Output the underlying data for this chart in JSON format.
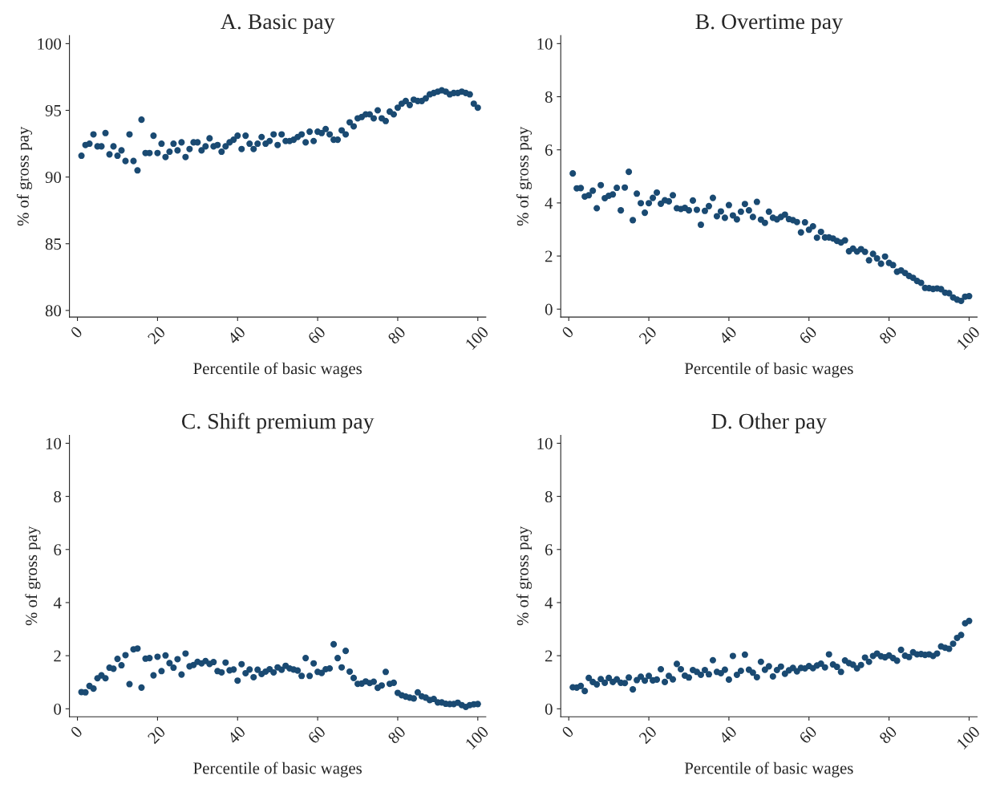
{
  "chart_data": [
    {
      "type": "scatter",
      "title": "A. Basic pay",
      "xlabel": "Percentile of basic wages",
      "ylabel": "% of gross pay",
      "marker": "circle",
      "grid": false,
      "xlim": [
        -2,
        102
      ],
      "xticks": [
        0,
        20,
        40,
        60,
        80,
        100
      ],
      "ylim": [
        79.5,
        100.6
      ],
      "yticks": [
        80,
        85,
        90,
        95,
        100
      ],
      "x": [
        1,
        2,
        3,
        4,
        5,
        6,
        7,
        8,
        9,
        10,
        11,
        12,
        13,
        14,
        15,
        16,
        17,
        18,
        19,
        20,
        21,
        22,
        23,
        24,
        25,
        26,
        27,
        28,
        29,
        30,
        31,
        32,
        33,
        34,
        35,
        36,
        37,
        38,
        39,
        40,
        41,
        42,
        43,
        44,
        45,
        46,
        47,
        48,
        49,
        50,
        51,
        52,
        53,
        54,
        55,
        56,
        57,
        58,
        59,
        60,
        61,
        62,
        63,
        64,
        65,
        66,
        67,
        68,
        69,
        70,
        71,
        72,
        73,
        74,
        75,
        76,
        77,
        78,
        79,
        80,
        81,
        82,
        83,
        84,
        85,
        86,
        87,
        88,
        89,
        90,
        91,
        92,
        93,
        94,
        95,
        96,
        97,
        98,
        99,
        100
      ],
      "series": [
        {
          "color": "#1a4a72",
          "values": [
            91.6,
            92.4,
            92.5,
            93.2,
            92.3,
            92.3,
            93.3,
            91.7,
            92.3,
            91.6,
            92.0,
            91.2,
            93.2,
            91.2,
            90.5,
            94.3,
            91.8,
            91.8,
            93.1,
            91.8,
            92.5,
            91.5,
            91.9,
            92.5,
            92.0,
            92.6,
            91.5,
            92.1,
            92.6,
            92.6,
            92.0,
            92.3,
            92.9,
            92.3,
            92.4,
            91.9,
            92.3,
            92.6,
            92.8,
            93.1,
            92.1,
            93.1,
            92.5,
            92.1,
            92.5,
            93.0,
            92.5,
            92.7,
            93.2,
            92.4,
            93.2,
            92.7,
            92.7,
            92.8,
            93.0,
            93.2,
            92.6,
            93.4,
            92.7,
            93.4,
            93.3,
            93.6,
            93.2,
            92.8,
            92.8,
            93.5,
            93.2,
            94.1,
            93.8,
            94.4,
            94.5,
            94.7,
            94.7,
            94.4,
            95.0,
            94.4,
            94.2,
            94.9,
            94.7,
            95.2,
            95.5,
            95.7,
            95.4,
            95.8,
            95.7,
            95.7,
            95.9,
            96.2,
            96.3,
            96.4,
            96.5,
            96.4,
            96.2,
            96.3,
            96.3,
            96.4,
            96.3,
            96.2,
            95.5,
            95.2
          ]
        }
      ]
    },
    {
      "type": "scatter",
      "title": "B. Overtime pay",
      "xlabel": "Percentile of basic wages",
      "ylabel": "% of gross pay",
      "marker": "circle",
      "grid": false,
      "xlim": [
        -2,
        102
      ],
      "xticks": [
        0,
        20,
        40,
        60,
        80,
        100
      ],
      "ylim": [
        -0.3,
        10.3
      ],
      "yticks": [
        0,
        2,
        4,
        6,
        8,
        10
      ],
      "x": [
        1,
        2,
        3,
        4,
        5,
        6,
        7,
        8,
        9,
        10,
        11,
        12,
        13,
        14,
        15,
        16,
        17,
        18,
        19,
        20,
        21,
        22,
        23,
        24,
        25,
        26,
        27,
        28,
        29,
        30,
        31,
        32,
        33,
        34,
        35,
        36,
        37,
        38,
        39,
        40,
        41,
        42,
        43,
        44,
        45,
        46,
        47,
        48,
        49,
        50,
        51,
        52,
        53,
        54,
        55,
        56,
        57,
        58,
        59,
        60,
        61,
        62,
        63,
        64,
        65,
        66,
        67,
        68,
        69,
        70,
        71,
        72,
        73,
        74,
        75,
        76,
        77,
        78,
        79,
        80,
        81,
        82,
        83,
        84,
        85,
        86,
        87,
        88,
        89,
        90,
        91,
        92,
        93,
        94,
        95,
        96,
        97,
        98,
        99,
        100
      ],
      "series": [
        {
          "color": "#1a4a72",
          "values": [
            5.11,
            4.55,
            4.56,
            4.24,
            4.29,
            4.46,
            3.8,
            4.67,
            4.18,
            4.27,
            4.32,
            4.57,
            3.72,
            4.58,
            5.17,
            3.35,
            4.35,
            3.99,
            3.63,
            3.99,
            4.19,
            4.39,
            3.97,
            4.1,
            4.06,
            4.29,
            3.8,
            3.77,
            3.81,
            3.72,
            4.09,
            3.74,
            3.18,
            3.7,
            3.88,
            4.19,
            3.5,
            3.68,
            3.44,
            3.92,
            3.53,
            3.38,
            3.67,
            3.96,
            3.72,
            3.47,
            4.04,
            3.37,
            3.25,
            3.67,
            3.44,
            3.38,
            3.47,
            3.56,
            3.39,
            3.35,
            3.28,
            2.89,
            3.27,
            2.99,
            3.12,
            2.69,
            2.91,
            2.7,
            2.7,
            2.66,
            2.57,
            2.51,
            2.59,
            2.18,
            2.28,
            2.17,
            2.26,
            2.16,
            1.84,
            2.08,
            1.91,
            1.71,
            1.98,
            1.74,
            1.66,
            1.41,
            1.46,
            1.36,
            1.25,
            1.18,
            1.06,
            0.99,
            0.8,
            0.79,
            0.76,
            0.78,
            0.75,
            0.62,
            0.6,
            0.44,
            0.36,
            0.31,
            0.47,
            0.49
          ]
        }
      ]
    },
    {
      "type": "scatter",
      "title": "C. Shift premium pay",
      "xlabel": "Percentile of basic wages",
      "ylabel": "% of gross pay",
      "marker": "circle",
      "grid": false,
      "xlim": [
        -2,
        102
      ],
      "xticks": [
        0,
        20,
        40,
        60,
        80,
        100
      ],
      "ylim": [
        -0.3,
        10.3
      ],
      "yticks": [
        0,
        2,
        4,
        6,
        8,
        10
      ],
      "x": [
        1,
        2,
        3,
        4,
        5,
        6,
        7,
        8,
        9,
        10,
        11,
        12,
        13,
        14,
        15,
        16,
        17,
        18,
        19,
        20,
        21,
        22,
        23,
        24,
        25,
        26,
        27,
        28,
        29,
        30,
        31,
        32,
        33,
        34,
        35,
        36,
        37,
        38,
        39,
        40,
        41,
        42,
        43,
        44,
        45,
        46,
        47,
        48,
        49,
        50,
        51,
        52,
        53,
        54,
        55,
        56,
        57,
        58,
        59,
        60,
        61,
        62,
        63,
        64,
        65,
        66,
        67,
        68,
        69,
        70,
        71,
        72,
        73,
        74,
        75,
        76,
        77,
        78,
        79,
        80,
        81,
        82,
        83,
        84,
        85,
        86,
        87,
        88,
        89,
        90,
        91,
        92,
        93,
        94,
        95,
        96,
        97,
        98,
        99,
        100
      ],
      "series": [
        {
          "color": "#1a4a72",
          "values": [
            0.63,
            0.62,
            0.86,
            0.76,
            1.15,
            1.26,
            1.15,
            1.55,
            1.51,
            1.88,
            1.64,
            2.02,
            0.93,
            2.24,
            2.27,
            0.8,
            1.89,
            1.91,
            1.26,
            1.96,
            1.42,
            2.01,
            1.72,
            1.55,
            1.87,
            1.29,
            2.08,
            1.6,
            1.65,
            1.77,
            1.71,
            1.8,
            1.69,
            1.76,
            1.42,
            1.37,
            1.74,
            1.45,
            1.48,
            1.06,
            1.68,
            1.34,
            1.48,
            1.19,
            1.47,
            1.31,
            1.4,
            1.49,
            1.37,
            1.56,
            1.47,
            1.62,
            1.52,
            1.48,
            1.44,
            1.24,
            1.91,
            1.24,
            1.71,
            1.39,
            1.35,
            1.49,
            1.52,
            2.43,
            1.91,
            1.56,
            2.18,
            1.4,
            1.16,
            0.94,
            0.95,
            1.03,
            0.97,
            1.02,
            0.79,
            0.88,
            1.39,
            0.94,
            0.98,
            0.6,
            0.51,
            0.46,
            0.42,
            0.39,
            0.62,
            0.47,
            0.42,
            0.33,
            0.37,
            0.24,
            0.24,
            0.19,
            0.18,
            0.18,
            0.23,
            0.14,
            0.07,
            0.14,
            0.17,
            0.18
          ]
        }
      ]
    },
    {
      "type": "scatter",
      "title": "D. Other pay",
      "xlabel": "Percentile of basic wages",
      "ylabel": "% of gross pay",
      "marker": "circle",
      "grid": false,
      "xlim": [
        -2,
        102
      ],
      "xticks": [
        0,
        20,
        40,
        60,
        80,
        100
      ],
      "ylim": [
        -0.3,
        10.3
      ],
      "yticks": [
        0,
        2,
        4,
        6,
        8,
        10
      ],
      "x": [
        1,
        2,
        3,
        4,
        5,
        6,
        7,
        8,
        9,
        10,
        11,
        12,
        13,
        14,
        15,
        16,
        17,
        18,
        19,
        20,
        21,
        22,
        23,
        24,
        25,
        26,
        27,
        28,
        29,
        30,
        31,
        32,
        33,
        34,
        35,
        36,
        37,
        38,
        39,
        40,
        41,
        42,
        43,
        44,
        45,
        46,
        47,
        48,
        49,
        50,
        51,
        52,
        53,
        54,
        55,
        56,
        57,
        58,
        59,
        60,
        61,
        62,
        63,
        64,
        65,
        66,
        67,
        68,
        69,
        70,
        71,
        72,
        73,
        74,
        75,
        76,
        77,
        78,
        79,
        80,
        81,
        82,
        83,
        84,
        85,
        86,
        87,
        88,
        89,
        90,
        91,
        92,
        93,
        94,
        95,
        96,
        97,
        98,
        99,
        100
      ],
      "series": [
        {
          "color": "#1a4a72",
          "values": [
            0.81,
            0.8,
            0.86,
            0.67,
            1.16,
            1.01,
            0.92,
            1.12,
            0.98,
            1.16,
            1.01,
            1.11,
            0.98,
            0.97,
            1.18,
            0.73,
            1.08,
            1.21,
            1.06,
            1.24,
            1.07,
            1.1,
            1.49,
            1.01,
            1.24,
            1.11,
            1.69,
            1.49,
            1.25,
            1.18,
            1.46,
            1.39,
            1.28,
            1.46,
            1.3,
            1.83,
            1.39,
            1.34,
            1.47,
            1.1,
            1.99,
            1.28,
            1.43,
            2.04,
            1.47,
            1.36,
            1.19,
            1.77,
            1.47,
            1.6,
            1.22,
            1.46,
            1.59,
            1.32,
            1.45,
            1.54,
            1.41,
            1.54,
            1.52,
            1.61,
            1.53,
            1.63,
            1.7,
            1.56,
            2.05,
            1.67,
            1.58,
            1.39,
            1.82,
            1.72,
            1.66,
            1.52,
            1.65,
            1.93,
            1.77,
            1.99,
            2.08,
            1.98,
            1.94,
            2.01,
            1.91,
            1.81,
            2.22,
            2.0,
            1.95,
            2.13,
            2.05,
            2.06,
            2.03,
            2.05,
            1.99,
            2.08,
            2.35,
            2.3,
            2.26,
            2.45,
            2.67,
            2.78,
            3.22,
            3.31
          ]
        }
      ]
    }
  ]
}
